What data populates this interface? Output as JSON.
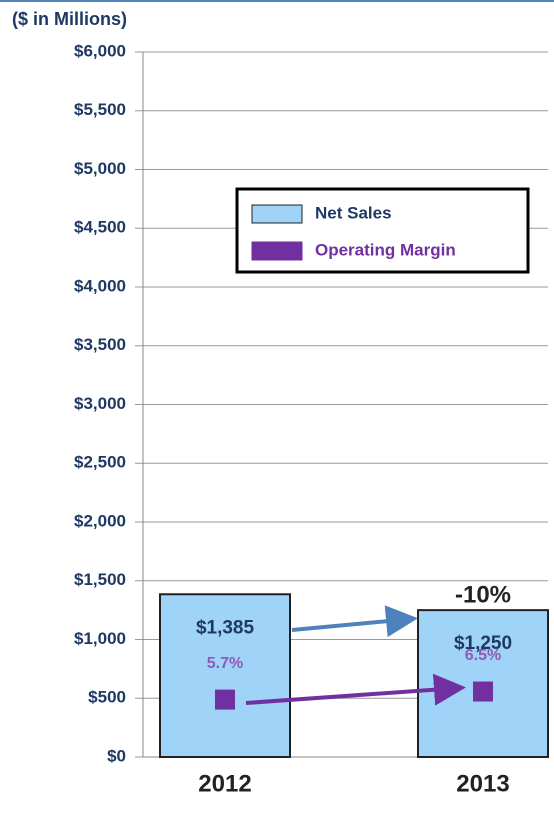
{
  "chart_data": {
    "type": "bar",
    "subtitle": "($ in Millions)",
    "categories": [
      "2012",
      "2013"
    ],
    "series": [
      {
        "name": "Net Sales",
        "color": "#9fd3f7",
        "values": [
          1385,
          1250
        ],
        "value_labels": [
          "$1,385",
          "$1,250"
        ]
      },
      {
        "name": "Operating Margin",
        "color": "#7030a0",
        "axis": "y2",
        "values": [
          5.7,
          6.5
        ],
        "value_labels": [
          "5.7%",
          "6.5%"
        ]
      }
    ],
    "annotations": [
      "-10%"
    ],
    "ylim": [
      0,
      6000
    ],
    "yticks": [
      {
        "value": 0,
        "label": "$0"
      },
      {
        "value": 500,
        "label": "$500"
      },
      {
        "value": 1000,
        "label": "$1,000"
      },
      {
        "value": 1500,
        "label": "$1,500"
      },
      {
        "value": 2000,
        "label": "$2,000"
      },
      {
        "value": 2500,
        "label": "$2,500"
      },
      {
        "value": 3000,
        "label": "$3,000"
      },
      {
        "value": 3500,
        "label": "$3,500"
      },
      {
        "value": 4000,
        "label": "$4,000"
      },
      {
        "value": 4500,
        "label": "$4,500"
      },
      {
        "value": 5000,
        "label": "$5,000"
      },
      {
        "value": 5500,
        "label": "$5,500"
      },
      {
        "value": 6000,
        "label": "$6,000"
      }
    ],
    "y2lim": [
      0,
      70
    ],
    "grid": true
  }
}
